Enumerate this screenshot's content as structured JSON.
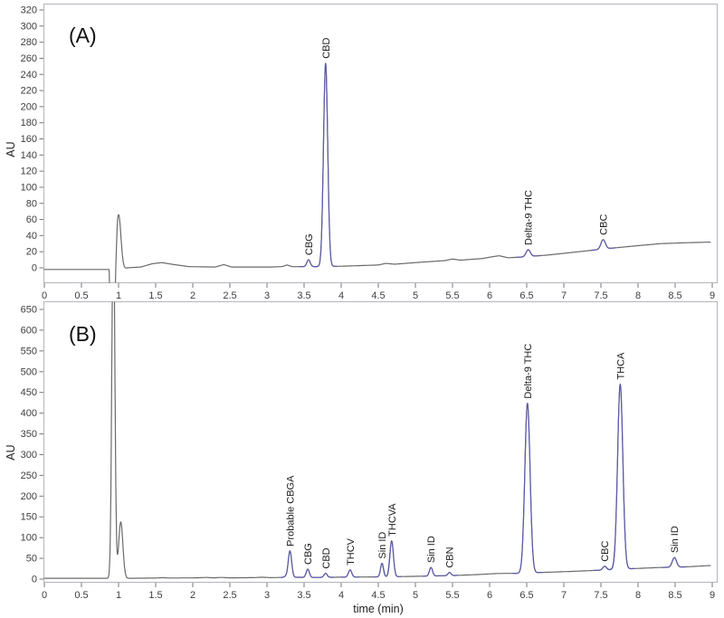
{
  "figure": {
    "x_axis_label": "time (min)",
    "y_axis_label": "AU",
    "panel_a_letter": "(A)",
    "panel_b_letter": "(B)"
  },
  "chart_data": [
    {
      "type": "line",
      "panel": "(A)",
      "title": "",
      "xlabel": "",
      "ylabel": "AU",
      "xlim": [
        0,
        9
      ],
      "ylim": [
        0,
        320
      ],
      "xtick_step": 0.5,
      "ytick_max": 320,
      "ytick_step": 20,
      "grid": false,
      "legend": "none",
      "trace_color": "#6a6a6a",
      "peak_color": "#5c5caa",
      "peaks": [
        {
          "label": "CBG",
          "time_min": 3.56,
          "apex_au": 10,
          "width_min": 0.032
        },
        {
          "label": "CBD",
          "time_min": 3.79,
          "apex_au": 254,
          "width_min": 0.04
        },
        {
          "label": "Delta-9 THC",
          "time_min": 6.52,
          "apex_au": 22.5,
          "width_min": 0.04
        },
        {
          "label": "CBC",
          "time_min": 7.53,
          "apex_au": 35,
          "width_min": 0.042
        }
      ],
      "unlabeled_features": [
        {
          "name": "solvent-front",
          "time_min": 1.0,
          "apex_au": 66,
          "width_min": 0.045,
          "clipped": false
        }
      ],
      "baseline_points": [
        [
          0,
          -2
        ],
        [
          0.875,
          -2
        ],
        [
          0.885,
          -70
        ],
        [
          0.95,
          -70
        ],
        [
          0.965,
          -30
        ],
        [
          0.985,
          -5
        ],
        [
          1.12,
          0
        ],
        [
          1.3,
          1
        ],
        [
          1.45,
          5
        ],
        [
          1.58,
          6.5
        ],
        [
          1.75,
          4
        ],
        [
          1.95,
          1.5
        ],
        [
          2.3,
          1
        ],
        [
          2.42,
          4
        ],
        [
          2.52,
          1
        ],
        [
          3.05,
          1
        ],
        [
          3.2,
          1.5
        ],
        [
          3.27,
          3.5
        ],
        [
          3.34,
          1.5
        ],
        [
          3.6,
          1.5
        ],
        [
          4.0,
          2
        ],
        [
          4.5,
          3.5
        ],
        [
          4.6,
          5.5
        ],
        [
          4.72,
          4.5
        ],
        [
          5.0,
          6.5
        ],
        [
          5.4,
          9
        ],
        [
          5.5,
          11
        ],
        [
          5.6,
          9.5
        ],
        [
          5.9,
          11.5
        ],
        [
          6.05,
          14
        ],
        [
          6.13,
          15
        ],
        [
          6.25,
          12.5
        ],
        [
          6.45,
          13.5
        ],
        [
          6.8,
          16
        ],
        [
          7.2,
          20
        ],
        [
          7.6,
          24
        ],
        [
          8.0,
          27.5
        ],
        [
          8.3,
          30
        ],
        [
          8.6,
          31
        ],
        [
          9.0,
          32
        ]
      ]
    },
    {
      "type": "line",
      "panel": "(B)",
      "title": "",
      "xlabel": "time (min)",
      "ylabel": "AU",
      "xlim": [
        0,
        9
      ],
      "ylim": [
        0,
        650
      ],
      "xtick_step": 0.5,
      "ytick_max": 650,
      "ytick_step": 50,
      "grid": false,
      "legend": "none",
      "trace_color": "#6a6a6a",
      "peak_color": "#5c5caa",
      "peaks": [
        {
          "label": "Probable CBGA",
          "time_min": 3.31,
          "apex_au": 68,
          "width_min": 0.032
        },
        {
          "label": "CBG",
          "time_min": 3.55,
          "apex_au": 24,
          "width_min": 0.03
        },
        {
          "label": "CBD",
          "time_min": 3.79,
          "apex_au": 14,
          "width_min": 0.03
        },
        {
          "label": "THCV",
          "time_min": 4.12,
          "apex_au": 22,
          "width_min": 0.032
        },
        {
          "label": "Sin ID",
          "time_min": 4.55,
          "apex_au": 38,
          "width_min": 0.028
        },
        {
          "label": "THCVA",
          "time_min": 4.68,
          "apex_au": 92,
          "width_min": 0.034
        },
        {
          "label": "Sin ID",
          "time_min": 5.21,
          "apex_au": 28,
          "width_min": 0.03
        },
        {
          "label": "CBN",
          "time_min": 5.46,
          "apex_au": 16,
          "width_min": 0.03
        },
        {
          "label": "Delta-9 THC",
          "time_min": 6.51,
          "apex_au": 424,
          "width_min": 0.05
        },
        {
          "label": "CBC",
          "time_min": 7.55,
          "apex_au": 31,
          "width_min": 0.035
        },
        {
          "label": "THCA",
          "time_min": 7.76,
          "apex_au": 470,
          "width_min": 0.05
        },
        {
          "label": "Sin ID",
          "time_min": 8.49,
          "apex_au": 52,
          "width_min": 0.04
        }
      ],
      "unlabeled_features": [
        {
          "name": "solvent-front",
          "time_min": 0.93,
          "apex_au": 900,
          "width_min": 0.028,
          "clipped": true
        },
        {
          "name": "solvent-front-shoulder",
          "time_min": 1.03,
          "apex_au": 138,
          "width_min": 0.04,
          "clipped": false
        }
      ],
      "baseline_points": [
        [
          0,
          2
        ],
        [
          0.8,
          2
        ],
        [
          1.18,
          2
        ],
        [
          1.5,
          2.5
        ],
        [
          1.6,
          3.5
        ],
        [
          1.68,
          2.5
        ],
        [
          2.05,
          3
        ],
        [
          2.18,
          4
        ],
        [
          2.28,
          3
        ],
        [
          2.38,
          4
        ],
        [
          2.5,
          3
        ],
        [
          2.82,
          3.5
        ],
        [
          2.93,
          4.5
        ],
        [
          3.05,
          3.5
        ],
        [
          3.2,
          4
        ],
        [
          3.26,
          7
        ],
        [
          3.32,
          4.5
        ],
        [
          3.6,
          4
        ],
        [
          4.3,
          5
        ],
        [
          4.8,
          6
        ],
        [
          5.1,
          7
        ],
        [
          5.5,
          8.5
        ],
        [
          5.85,
          11
        ],
        [
          6.1,
          13.5
        ],
        [
          6.4,
          14
        ],
        [
          6.7,
          16
        ],
        [
          7.1,
          18.5
        ],
        [
          7.5,
          21.5
        ],
        [
          7.9,
          25
        ],
        [
          8.3,
          28
        ],
        [
          8.65,
          29.5
        ],
        [
          9.0,
          33
        ]
      ]
    }
  ]
}
